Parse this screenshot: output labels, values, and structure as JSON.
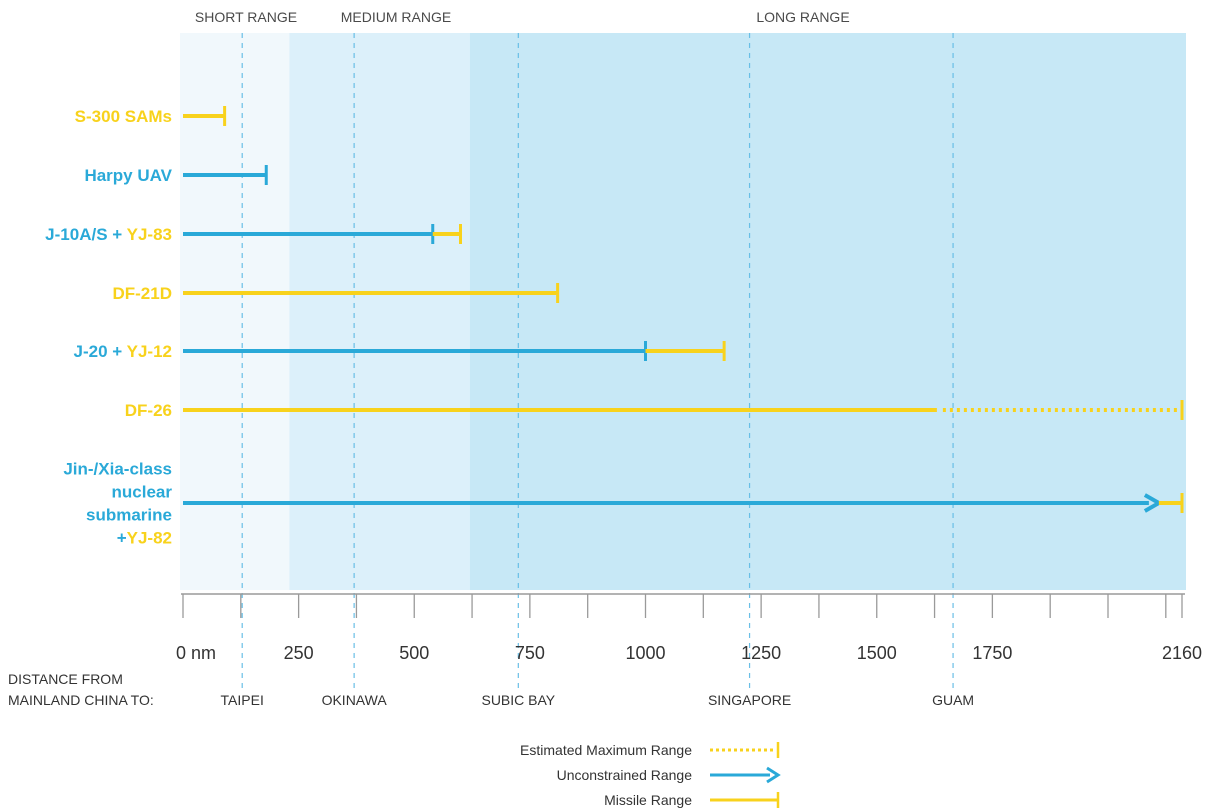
{
  "colors": {
    "missile": "#f8d21c",
    "unconstrained": "#2aa9d8",
    "short_bg": "#f1f8fc",
    "medium_bg": "#dcf0fa",
    "long_bg": "#c7e8f6",
    "axis": "#9a9a9a",
    "city_line": "#69bfe6"
  },
  "chart_data": {
    "type": "range-bar",
    "x_unit": "nm",
    "xlim": [
      0,
      2160
    ],
    "x_ticks": [
      {
        "value": 0,
        "label": "0 nm"
      },
      {
        "value": 250,
        "label": "250"
      },
      {
        "value": 500,
        "label": "500"
      },
      {
        "value": 750,
        "label": "750"
      },
      {
        "value": 1000,
        "label": "1000"
      },
      {
        "value": 1250,
        "label": "1250"
      },
      {
        "value": 1500,
        "label": "1500"
      },
      {
        "value": 1750,
        "label": "1750"
      },
      {
        "value": 2160,
        "label": "2160"
      }
    ],
    "range_bands": [
      {
        "label": "SHORT RANGE",
        "start": 0,
        "end": 230
      },
      {
        "label": "MEDIUM RANGE",
        "start": 230,
        "end": 620
      },
      {
        "label": "LONG RANGE",
        "start": 620,
        "end": 2160
      }
    ],
    "caption_lines": [
      "DISTANCE FROM",
      "MAINLAND CHINA TO:"
    ],
    "cities": [
      {
        "label": "TAIPEI",
        "value": 128
      },
      {
        "label": "OKINAWA",
        "value": 370
      },
      {
        "label": "SUBIC BAY",
        "value": 725
      },
      {
        "label": "SINGAPORE",
        "value": 1225
      },
      {
        "label": "GUAM",
        "value": 1665
      }
    ],
    "systems": [
      {
        "label_parts": [
          {
            "text": "S-300 SAMs",
            "kind": "missile"
          }
        ],
        "segments": [
          {
            "kind": "missile",
            "style": "solid",
            "start": 0,
            "end": 90,
            "end_cap": "bar"
          }
        ]
      },
      {
        "label_parts": [
          {
            "text": "Harpy UAV",
            "kind": "unconstrained"
          }
        ],
        "segments": [
          {
            "kind": "unconstrained",
            "style": "solid",
            "start": 0,
            "end": 180,
            "end_cap": "bar"
          }
        ]
      },
      {
        "label_parts": [
          {
            "text": "J-10A/S",
            "kind": "unconstrained"
          },
          {
            "text": " + ",
            "kind": "unconstrained"
          },
          {
            "text": "YJ-83",
            "kind": "missile"
          }
        ],
        "segments": [
          {
            "kind": "unconstrained",
            "style": "solid",
            "start": 0,
            "end": 540,
            "end_cap": "bar"
          },
          {
            "kind": "missile",
            "style": "solid",
            "start": 540,
            "end": 600,
            "end_cap": "bar"
          }
        ]
      },
      {
        "label_parts": [
          {
            "text": "DF-21D",
            "kind": "missile"
          }
        ],
        "segments": [
          {
            "kind": "missile",
            "style": "solid",
            "start": 0,
            "end": 810,
            "end_cap": "bar"
          }
        ]
      },
      {
        "label_parts": [
          {
            "text": "J-20",
            "kind": "unconstrained"
          },
          {
            "text": " + ",
            "kind": "unconstrained"
          },
          {
            "text": "YJ-12",
            "kind": "missile"
          }
        ],
        "segments": [
          {
            "kind": "unconstrained",
            "style": "solid",
            "start": 0,
            "end": 1000,
            "end_cap": "bar"
          },
          {
            "kind": "missile",
            "style": "solid",
            "start": 1000,
            "end": 1170,
            "end_cap": "bar"
          }
        ]
      },
      {
        "label_parts": [
          {
            "text": "DF-26",
            "kind": "missile"
          }
        ],
        "segments": [
          {
            "kind": "missile",
            "style": "solid",
            "start": 0,
            "end": 1630,
            "end_cap": "none"
          },
          {
            "kind": "missile",
            "style": "dotted",
            "start": 1630,
            "end": 2160,
            "end_cap": "bar"
          }
        ]
      },
      {
        "label_parts": [
          {
            "text": "Jin-/Xia-class",
            "kind": "unconstrained"
          },
          {
            "text": "nuclear",
            "kind": "unconstrained"
          },
          {
            "text": "submarine",
            "kind": "unconstrained"
          },
          {
            "text": "+",
            "kind": "unconstrained"
          },
          {
            "text": "YJ-82",
            "kind": "missile"
          }
        ],
        "label_lines": [
          [
            0
          ],
          [
            1
          ],
          [
            2
          ],
          [
            3,
            4
          ]
        ],
        "segments": [
          {
            "kind": "unconstrained",
            "style": "solid",
            "start": 0,
            "end": 2110,
            "end_cap": "arrow"
          },
          {
            "kind": "missile",
            "style": "solid",
            "start": 2110,
            "end": 2160,
            "end_cap": "bar"
          }
        ]
      }
    ],
    "legend": [
      {
        "label": "Estimated Maximum Range",
        "kind": "missile",
        "style": "dotted",
        "end_cap": "bar"
      },
      {
        "label": "Unconstrained Range",
        "kind": "unconstrained",
        "style": "solid",
        "end_cap": "arrow"
      },
      {
        "label": "Missile Range",
        "kind": "missile",
        "style": "solid",
        "end_cap": "bar"
      }
    ]
  }
}
